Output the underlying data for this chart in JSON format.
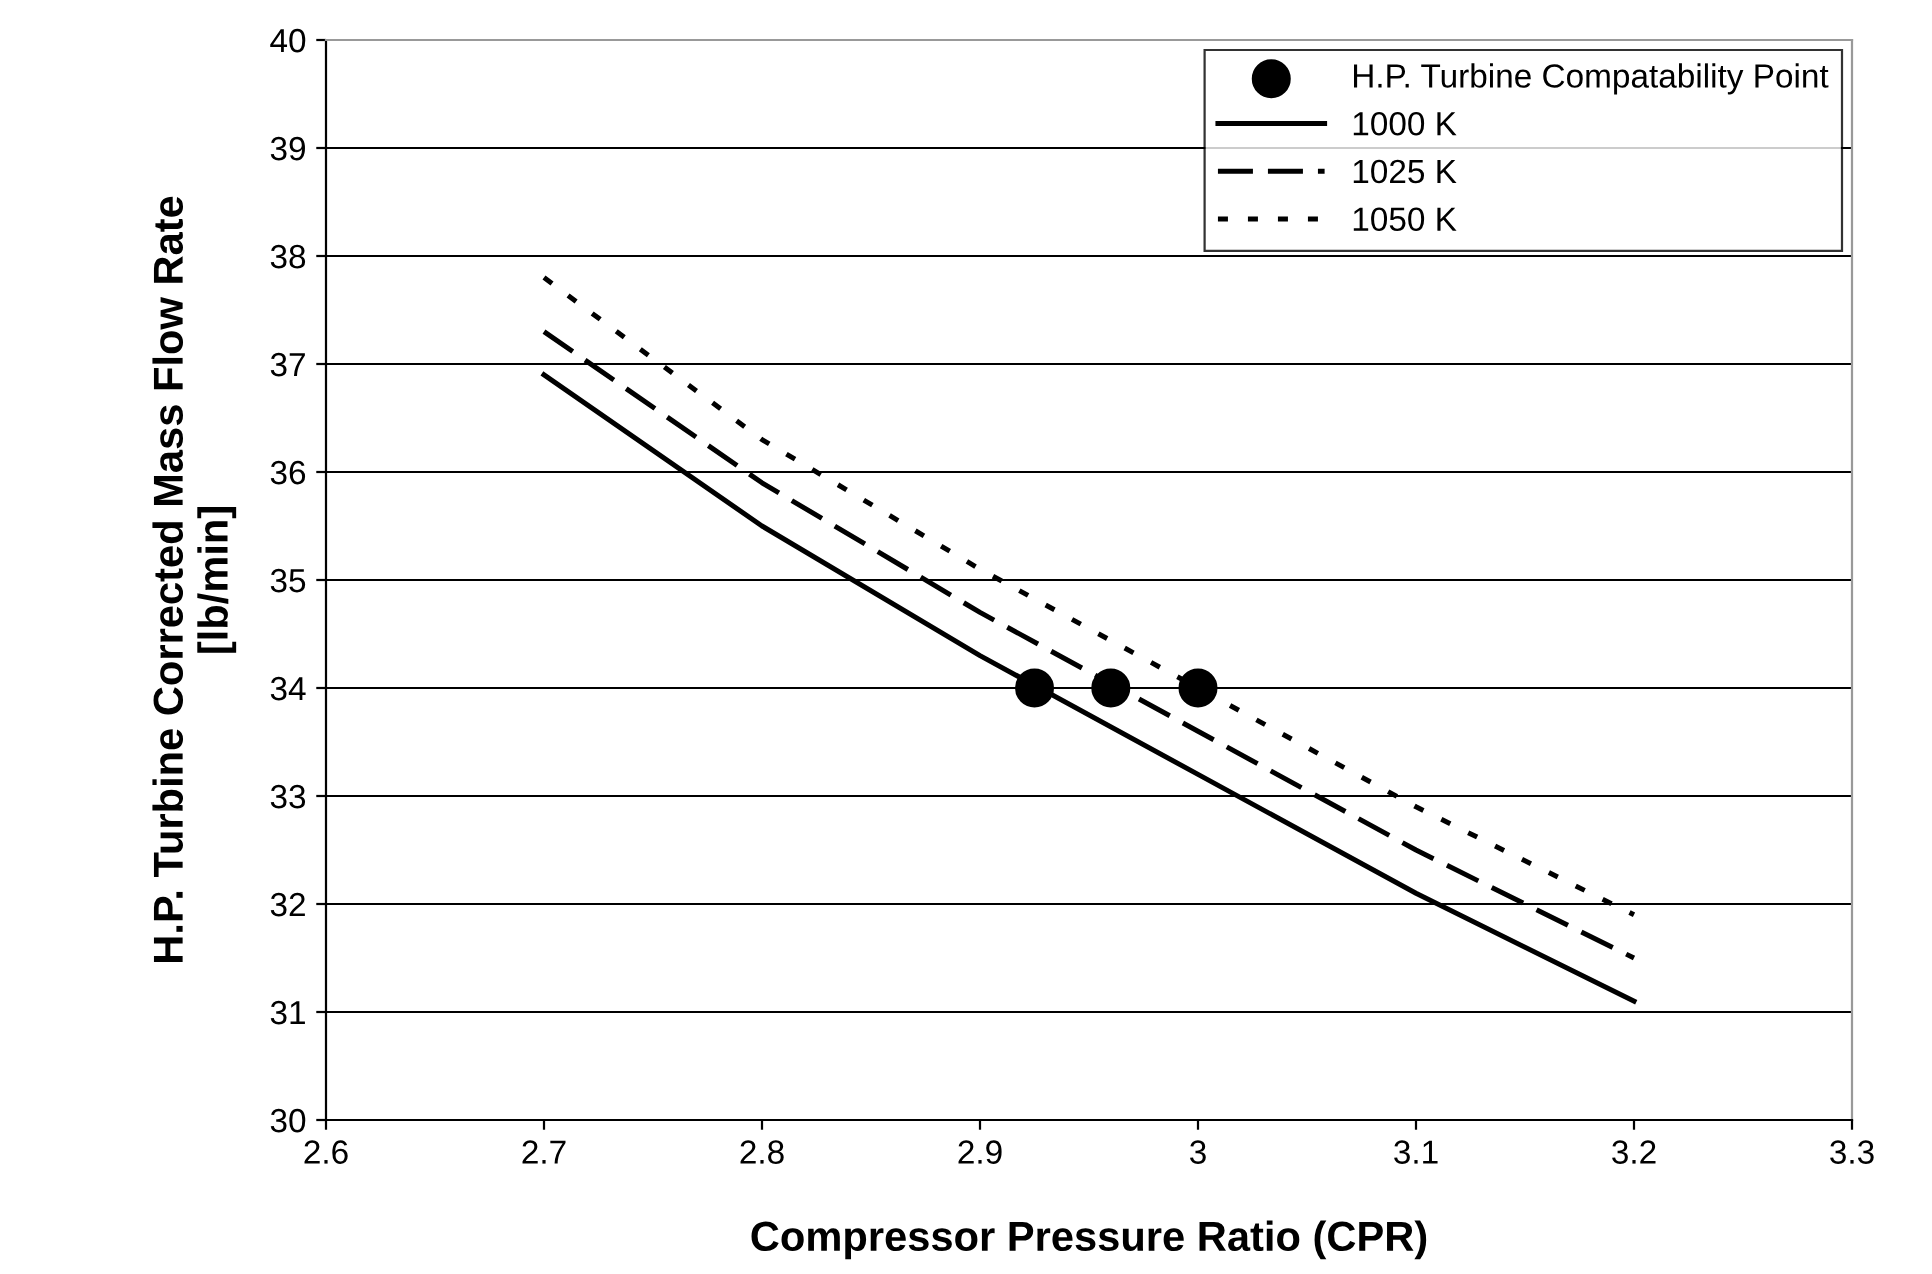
{
  "chart_data": {
    "type": "line",
    "xlabel": "Compressor Pressure Ratio (CPR)",
    "ylabel": "H.P. Turbine Corrected Mass Flow Rate\n[lb/min]",
    "xlim": [
      2.6,
      3.3
    ],
    "xticks": [
      2.6,
      2.7,
      2.8,
      2.9,
      3,
      3.1,
      3.2,
      3.3
    ],
    "ylim": [
      30,
      40
    ],
    "yticks": [
      30,
      31,
      32,
      33,
      34,
      35,
      36,
      37,
      38,
      39,
      40
    ],
    "grid": "y",
    "legend": "top right",
    "series": [
      {
        "name": "H.P. Turbine Compatability Point",
        "type": "scatter",
        "marker": "circle",
        "color": "#000000",
        "x": [
          2.925,
          2.96,
          3.0
        ],
        "values": [
          34,
          34,
          34
        ]
      },
      {
        "name": "1000 K",
        "line_style": "solid",
        "color": "#000000",
        "x": [
          2.7,
          2.8,
          2.9,
          3.0,
          3.1,
          3.2
        ],
        "values": [
          36.9,
          35.5,
          34.3,
          33.2,
          32.1,
          31.1
        ]
      },
      {
        "name": "1025 K",
        "line_style": "dashed",
        "color": "#000000",
        "x": [
          2.7,
          2.8,
          2.9,
          3.0,
          3.1,
          3.2
        ],
        "values": [
          37.3,
          35.9,
          34.7,
          33.6,
          32.5,
          31.5
        ]
      },
      {
        "name": "1050 K",
        "line_style": "dotted",
        "color": "#000000",
        "x": [
          2.7,
          2.8,
          2.9,
          3.0,
          3.1,
          3.2
        ],
        "values": [
          37.8,
          36.3,
          35.1,
          34.0,
          32.9,
          31.9
        ]
      }
    ]
  }
}
